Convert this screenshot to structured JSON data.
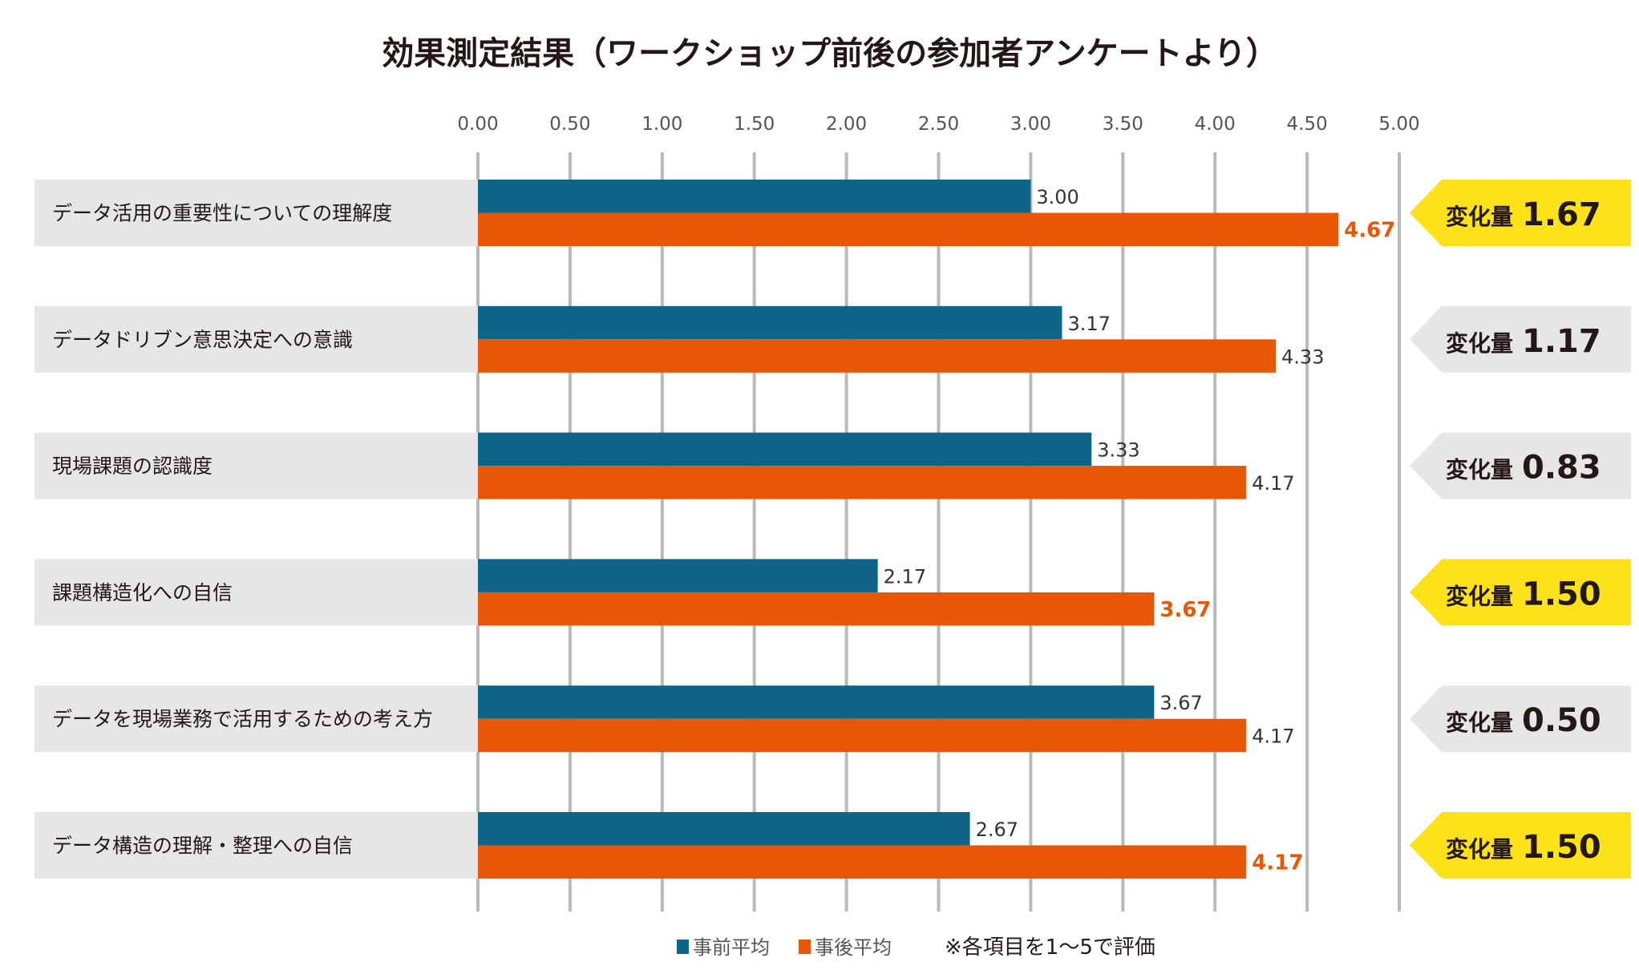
{
  "chart_data": {
    "type": "bar",
    "orientation": "horizontal",
    "title": "効果測定結果（ワークショップ前後の参加者アンケートより）",
    "xlim": [
      0,
      5
    ],
    "ticks": [
      "0.00",
      "0.50",
      "1.00",
      "1.50",
      "2.00",
      "2.50",
      "3.00",
      "3.50",
      "4.00",
      "4.50",
      "5.00"
    ],
    "grid": true,
    "legend_placement": "bottom",
    "categories": [
      "データ活用の重要性についての理解度",
      "データドリブン意思決定への意識",
      "現場課題の認識度",
      "課題構造化への自信",
      "データを現場業務で活用するための考え方",
      "データ構造の理解・整理への自信"
    ],
    "series": [
      {
        "name": "事前平均",
        "color": "#0e6587",
        "values": [
          3.0,
          3.17,
          3.33,
          2.17,
          3.67,
          2.67
        ],
        "labels": [
          "3.00",
          "3.17",
          "3.33",
          "2.17",
          "3.67",
          "2.67"
        ]
      },
      {
        "name": "事後平均",
        "color": "#e85607",
        "values": [
          4.67,
          4.33,
          4.17,
          3.67,
          4.17,
          4.17
        ],
        "labels": [
          "4.67",
          "4.33",
          "4.17",
          "3.67",
          "4.17",
          "4.17"
        ]
      }
    ],
    "change": {
      "prefix": "変化量",
      "values": [
        "1.67",
        "1.17",
        "0.83",
        "1.50",
        "0.50",
        "1.50"
      ],
      "highlighted": [
        true,
        false,
        false,
        true,
        false,
        true
      ]
    },
    "note": "※各項目を1～5で評価",
    "colors": {
      "highlight": "#fde21a",
      "neutral_badge": "#e6e6e6",
      "label_bg": "#e6e6e6",
      "grid": "#b9b9b9",
      "text": "#231815"
    }
  }
}
